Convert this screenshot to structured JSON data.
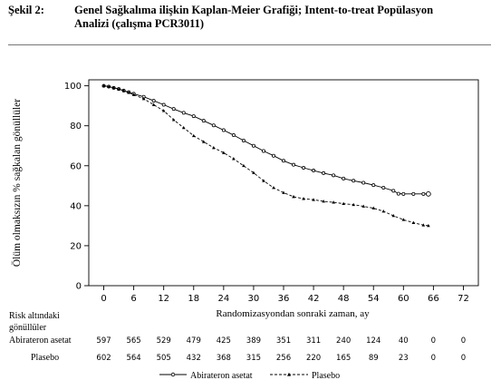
{
  "header": {
    "label": "Şekil 2:",
    "title_line1": "Genel Sağkalıma ilişkin Kaplan-Meier Grafiği; Intent-to-treat Popülasyon",
    "title_line2": "Analizi (çalışma PCR3011)"
  },
  "chart_data": {
    "type": "line",
    "title": "",
    "xlabel": "Randomizasyondan sonraki zaman, ay",
    "ylabel": "Ölüm olmaksızın % sağkalan gönüllüler",
    "xlim": [
      -3,
      75
    ],
    "ylim": [
      0,
      103
    ],
    "xticks": [
      0,
      6,
      12,
      18,
      24,
      30,
      36,
      42,
      48,
      54,
      60,
      66,
      72
    ],
    "yticks": [
      0,
      20,
      40,
      60,
      80,
      100
    ],
    "grid": false,
    "legend_position": "bottom-center",
    "series": [
      {
        "name": "Abirateron asetat",
        "marker": "circle",
        "line_style": "solid",
        "color": "#000000",
        "x": [
          0,
          1,
          2,
          3,
          4,
          5,
          6,
          8,
          10,
          12,
          14,
          16,
          18,
          20,
          22,
          24,
          26,
          28,
          30,
          32,
          34,
          36,
          38,
          40,
          42,
          44,
          46,
          48,
          50,
          52,
          54,
          56,
          58,
          59,
          60,
          62,
          64,
          65
        ],
        "y": [
          100,
          99.6,
          99,
          98.4,
          97.6,
          96.8,
          96,
          94.5,
          92.5,
          90.5,
          88.4,
          86.5,
          84.8,
          82.5,
          80.2,
          77.8,
          75.3,
          72.6,
          70,
          67.4,
          65,
          62.5,
          60.5,
          59,
          57.6,
          56.3,
          55.2,
          53.6,
          52.5,
          51.5,
          50.3,
          49,
          47.5,
          46,
          45.9,
          45.9,
          45.9,
          45.9
        ]
      },
      {
        "name": "Plasebo",
        "marker": "triangle",
        "line_style": "dashed",
        "color": "#000000",
        "x": [
          0,
          1,
          2,
          3,
          4,
          5,
          6,
          8,
          10,
          12,
          14,
          16,
          18,
          20,
          22,
          24,
          26,
          28,
          30,
          32,
          34,
          36,
          38,
          40,
          42,
          44,
          46,
          48,
          50,
          52,
          54,
          56,
          58,
          60,
          62,
          64,
          65
        ],
        "y": [
          100,
          99.6,
          99,
          98.3,
          97.5,
          96.6,
          95.5,
          93.5,
          90.5,
          87.5,
          83,
          79,
          75,
          72,
          69,
          66.5,
          63.5,
          60,
          56.5,
          52.5,
          49,
          46.5,
          44.5,
          43.5,
          43,
          42.2,
          41.7,
          41,
          40.5,
          39.7,
          38.8,
          37.2,
          35,
          33,
          31.5,
          30.3,
          30
        ]
      }
    ],
    "risk_table": {
      "title_line1": "Risk altındaki",
      "title_line2": "gönüllüler",
      "times": [
        0,
        6,
        12,
        18,
        24,
        30,
        36,
        42,
        48,
        54,
        60,
        66,
        72
      ],
      "rows": [
        {
          "label": "Abirateron asetat",
          "values": [
            "597",
            "565",
            "529",
            "479",
            "425",
            "389",
            "351",
            "311",
            "240",
            "124",
            "40",
            "0",
            "0"
          ]
        },
        {
          "label": "Plasebo",
          "values": [
            "602",
            "564",
            "505",
            "432",
            "368",
            "315",
            "256",
            "220",
            "165",
            "89",
            "23",
            "0",
            "0"
          ]
        }
      ]
    }
  }
}
